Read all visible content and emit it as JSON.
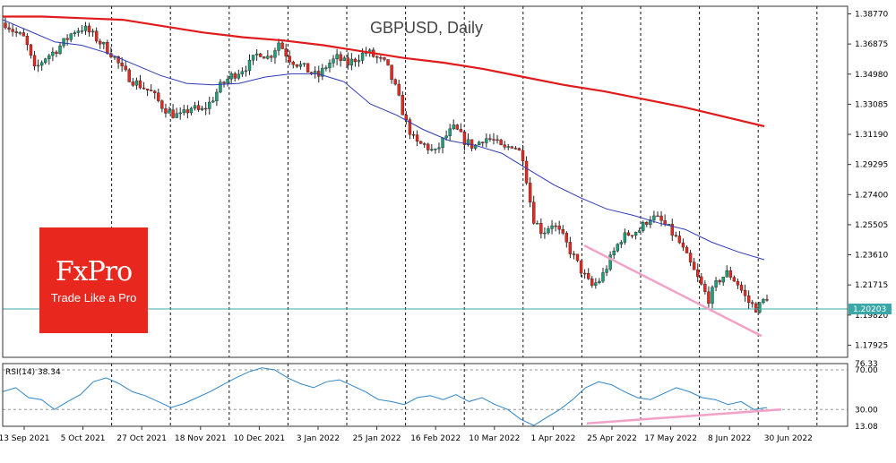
{
  "chart_data": {
    "type": "candlestick",
    "title": "GBPUSD, Daily",
    "price_axis": {
      "ticks": [
        "1.38770",
        "1.36875",
        "1.34980",
        "1.33085",
        "1.31190",
        "1.29295",
        "1.27400",
        "1.25505",
        "1.23610",
        "1.21715",
        "1.19820",
        "1.17925"
      ],
      "range": [
        1.1716,
        1.3925
      ],
      "current_price": "1.20203"
    },
    "x_axis": {
      "ticks": [
        "13 Sep 2021",
        "5 Oct 2021",
        "27 Oct 2021",
        "18 Nov 2021",
        "10 Dec 2021",
        "3 Jan 2022",
        "25 Jan 2022",
        "16 Feb 2022",
        "10 Mar 2022",
        "1 Apr 2022",
        "25 Apr 2022",
        "17 May 2022",
        "8 Jun 2022",
        "30 Jun 2022"
      ],
      "bar_count": 210
    },
    "price_path": [
      1.382,
      1.376,
      1.372,
      1.352,
      1.36,
      1.364,
      1.37,
      1.377,
      1.379,
      1.374,
      1.368,
      1.362,
      1.352,
      1.346,
      1.342,
      1.338,
      1.33,
      1.325,
      1.323,
      1.329,
      1.326,
      1.332,
      1.342,
      1.348,
      1.352,
      1.356,
      1.364,
      1.36,
      1.37,
      1.36,
      1.356,
      1.352,
      1.348,
      1.356,
      1.36,
      1.356,
      1.36,
      1.364,
      1.36,
      1.356,
      1.34,
      1.32,
      1.306,
      1.305,
      1.3,
      1.31,
      1.316,
      1.308,
      1.304,
      1.31,
      1.308,
      1.302,
      1.306,
      1.298,
      1.26,
      1.25,
      1.256,
      1.248,
      1.237,
      1.226,
      1.216,
      1.221,
      1.234,
      1.246,
      1.25,
      1.252,
      1.26,
      1.258,
      1.252,
      1.244,
      1.232,
      1.22,
      1.208,
      1.22,
      1.225,
      1.218,
      1.207,
      1.202,
      1.21
    ],
    "ma_fast": [
      1.384,
      1.377,
      1.37,
      1.368,
      1.363,
      1.356,
      1.349,
      1.344,
      1.343,
      1.344,
      1.348,
      1.35,
      1.35,
      1.345,
      1.331,
      1.324,
      1.315,
      1.308,
      1.305,
      1.3,
      1.29,
      1.28,
      1.272,
      1.265,
      1.261,
      1.256,
      1.252,
      1.244,
      1.238,
      1.233
    ],
    "ma_slow": [
      1.386,
      1.386,
      1.385,
      1.384,
      1.38,
      1.376,
      1.373,
      1.371,
      1.368,
      1.364,
      1.36,
      1.357,
      1.353,
      1.348,
      1.343,
      1.339,
      1.334,
      1.329,
      1.323,
      1.317
    ],
    "support_line": [
      [
        1.242,
        0.0
      ],
      [
        1.185,
        1.0
      ]
    ],
    "rsi": {
      "label": "RSI(14) 38.34",
      "ticks": [
        "76.33",
        "70.00",
        "30.00",
        "13.08"
      ],
      "range": [
        13.08,
        76.33
      ],
      "values": [
        48,
        52,
        42,
        40,
        30,
        38,
        45,
        58,
        62,
        56,
        48,
        44,
        38,
        32,
        36,
        42,
        48,
        55,
        62,
        68,
        72,
        70,
        62,
        56,
        52,
        58,
        60,
        54,
        48,
        40,
        38,
        35,
        42,
        44,
        40,
        45,
        38,
        42,
        35,
        30,
        20,
        14,
        22,
        30,
        40,
        52,
        58,
        55,
        48,
        42,
        40,
        46,
        52,
        48,
        42,
        40,
        35,
        38,
        30,
        32
      ],
      "trendline": [
        [
          16,
          0.0
        ],
        [
          30,
          1.0
        ]
      ]
    },
    "colors": {
      "bull": "#1aa17a",
      "bear": "#e8281e",
      "ma_fast": "#2c3ab8",
      "ma_slow": "#e11b1b",
      "support": "#f2a1c6",
      "rsi": "#2e86c8",
      "price_line": "#3aa8a8"
    }
  },
  "logo": {
    "brand": "FxPro",
    "tagline": "Trade Like a Pro"
  }
}
